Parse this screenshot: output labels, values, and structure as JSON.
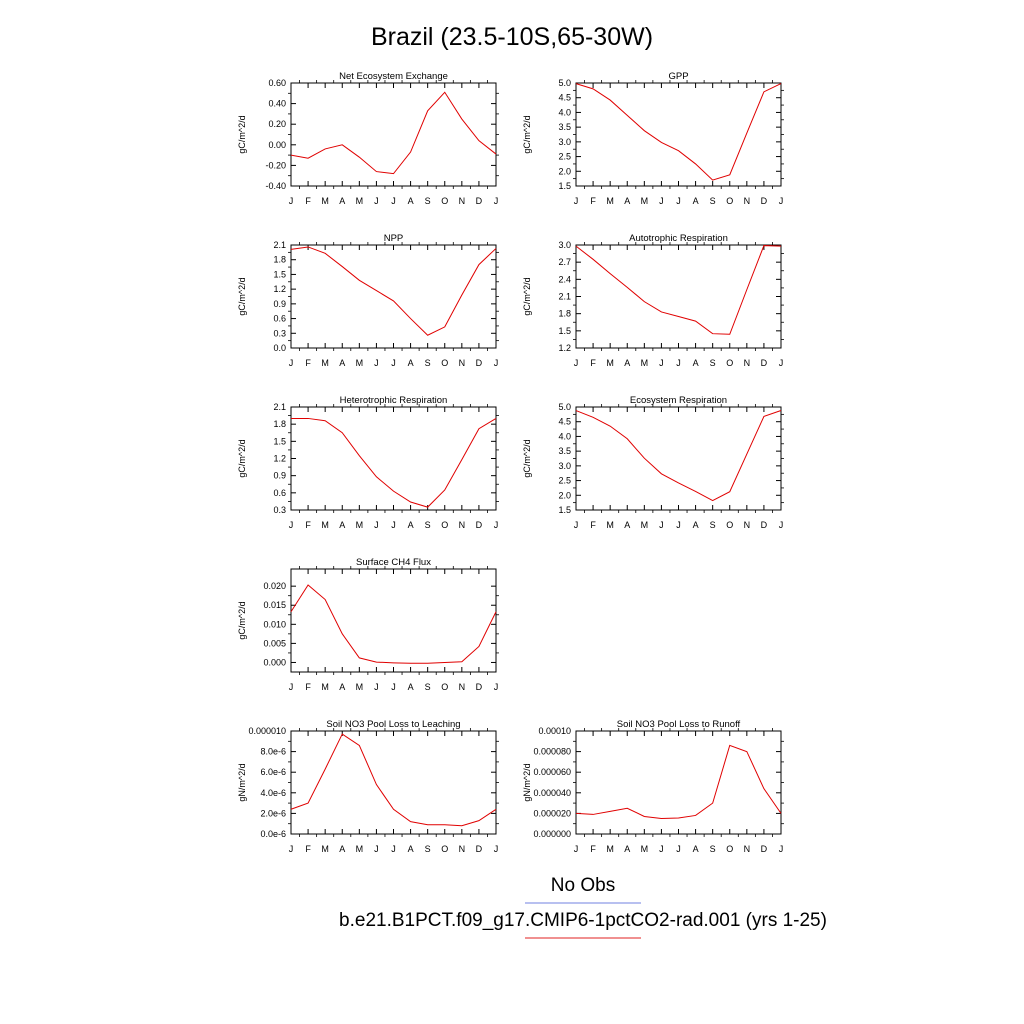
{
  "page_title": "Brazil (23.5-10S,65-30W)",
  "legend": {
    "obs_label": "No Obs",
    "obs_color": "#7080e0",
    "model_label": "b.e21.B1PCT.f09_g17.CMIP6-1pctCO2-rad.001 (yrs 1-25)",
    "model_color": "#e02020"
  },
  "line_color": "#e00000",
  "chart_data": [
    {
      "type": "line",
      "title": "Net Ecosystem Exchange",
      "ylabel": "gC/m^2/d",
      "categories": [
        "J",
        "F",
        "M",
        "A",
        "M",
        "J",
        "J",
        "A",
        "S",
        "O",
        "N",
        "D",
        "J"
      ],
      "ylim": [
        -0.4,
        0.6
      ],
      "ytick_labels": [
        "-0.40",
        "-0.20",
        "0.00",
        "0.20",
        "0.40",
        "0.60"
      ],
      "values": [
        -0.1,
        -0.13,
        -0.04,
        0.0,
        -0.12,
        -0.26,
        -0.28,
        -0.07,
        0.33,
        0.51,
        0.25,
        0.04,
        -0.09
      ]
    },
    {
      "type": "line",
      "title": "GPP",
      "ylabel": "gC/m^2/d",
      "categories": [
        "J",
        "F",
        "M",
        "A",
        "M",
        "J",
        "J",
        "A",
        "S",
        "O",
        "N",
        "D",
        "J"
      ],
      "ylim": [
        1.5,
        5.0
      ],
      "ytick_labels": [
        "1.5",
        "2.0",
        "2.5",
        "3.0",
        "3.5",
        "4.0",
        "4.5",
        "5.0"
      ],
      "values": [
        4.98,
        4.8,
        4.42,
        3.9,
        3.38,
        2.98,
        2.7,
        2.25,
        1.7,
        1.88,
        3.3,
        4.7,
        4.98
      ]
    },
    {
      "type": "line",
      "title": "NPP",
      "ylabel": "gC/m^2/d",
      "categories": [
        "J",
        "F",
        "M",
        "A",
        "M",
        "J",
        "J",
        "A",
        "S",
        "O",
        "N",
        "D",
        "J"
      ],
      "ylim": [
        0.0,
        2.1
      ],
      "ytick_labels": [
        "0.0",
        "0.3",
        "0.6",
        "0.9",
        "1.2",
        "1.5",
        "1.8",
        "2.1"
      ],
      "values": [
        2.01,
        2.06,
        1.93,
        1.66,
        1.38,
        1.17,
        0.96,
        0.6,
        0.26,
        0.43,
        1.08,
        1.7,
        2.03
      ]
    },
    {
      "type": "line",
      "title": "Autotrophic Respiration",
      "ylabel": "gC/m^2/d",
      "categories": [
        "J",
        "F",
        "M",
        "A",
        "M",
        "J",
        "J",
        "A",
        "S",
        "O",
        "N",
        "D",
        "J"
      ],
      "ylim": [
        1.2,
        3.0
      ],
      "ytick_labels": [
        "1.2",
        "1.5",
        "1.8",
        "2.1",
        "2.4",
        "2.7",
        "3.0"
      ],
      "values": [
        2.98,
        2.75,
        2.5,
        2.26,
        2.01,
        1.83,
        1.75,
        1.67,
        1.45,
        1.44,
        2.22,
        2.99,
        2.98
      ]
    },
    {
      "type": "line",
      "title": "Heterotrophic Respiration",
      "ylabel": "gC/m^2/d",
      "categories": [
        "J",
        "F",
        "M",
        "A",
        "M",
        "J",
        "J",
        "A",
        "S",
        "O",
        "N",
        "D",
        "J"
      ],
      "ylim": [
        0.3,
        2.1
      ],
      "ytick_labels": [
        "0.3",
        "0.6",
        "0.9",
        "1.2",
        "1.5",
        "1.8",
        "2.1"
      ],
      "values": [
        1.9,
        1.9,
        1.86,
        1.65,
        1.25,
        0.88,
        0.63,
        0.44,
        0.35,
        0.65,
        1.18,
        1.72,
        1.9
      ]
    },
    {
      "type": "line",
      "title": "Ecosystem Respiration",
      "ylabel": "gC/m^2/d",
      "categories": [
        "J",
        "F",
        "M",
        "A",
        "M",
        "J",
        "J",
        "A",
        "S",
        "O",
        "N",
        "D",
        "J"
      ],
      "ylim": [
        1.5,
        5.0
      ],
      "ytick_labels": [
        "1.5",
        "2.0",
        "2.5",
        "3.0",
        "3.5",
        "4.0",
        "4.5",
        "5.0"
      ],
      "values": [
        4.88,
        4.65,
        4.35,
        3.92,
        3.26,
        2.73,
        2.42,
        2.13,
        1.82,
        2.12,
        3.4,
        4.68,
        4.88
      ]
    },
    {
      "type": "line",
      "title": "Surface CH4 Flux",
      "ylabel": "gC/m^2/d",
      "categories": [
        "J",
        "F",
        "M",
        "A",
        "M",
        "J",
        "J",
        "A",
        "S",
        "O",
        "N",
        "D",
        "J"
      ],
      "ylim": [
        -0.0025,
        0.0245
      ],
      "ytick_labels": [
        "0.000",
        "0.005",
        "0.010",
        "0.015",
        "0.020"
      ],
      "ytick_values": [
        0.0,
        0.005,
        0.01,
        0.015,
        0.02
      ],
      "values": [
        0.0133,
        0.0203,
        0.0165,
        0.0075,
        0.0012,
        0.0001,
        -0.0001,
        -0.0002,
        -0.0002,
        0.0,
        0.0002,
        0.0042,
        0.0133
      ]
    },
    {
      "type": "line",
      "title": "Soil NO3 Pool Loss to Leaching",
      "ylabel": "gN/m^2/d",
      "categories": [
        "J",
        "F",
        "M",
        "A",
        "M",
        "J",
        "J",
        "A",
        "S",
        "O",
        "N",
        "D",
        "J"
      ],
      "ylim": [
        0.0,
        1e-05
      ],
      "ytick_labels": [
        "0.0e-6",
        "2.0e-6",
        "4.0e-6",
        "6.0e-6",
        "8.0e-6",
        "0.000010"
      ],
      "values": [
        2.4e-06,
        3e-06,
        6.3e-06,
        9.7e-06,
        8.6e-06,
        4.8e-06,
        2.4e-06,
        1.2e-06,
        9e-07,
        9e-07,
        8e-07,
        1.3e-06,
        2.4e-06
      ]
    },
    {
      "type": "line",
      "title": "Soil NO3 Pool Loss to Runoff",
      "ylabel": "gN/m^2/d",
      "categories": [
        "J",
        "F",
        "M",
        "A",
        "M",
        "J",
        "J",
        "A",
        "S",
        "O",
        "N",
        "D",
        "J"
      ],
      "ylim": [
        0.0,
        0.0001
      ],
      "ytick_labels": [
        "0.000000",
        "0.000020",
        "0.000040",
        "0.000060",
        "0.000080",
        "0.00010"
      ],
      "values": [
        2e-05,
        1.9e-05,
        2.2e-05,
        2.5e-05,
        1.7e-05,
        1.5e-05,
        1.55e-05,
        1.8e-05,
        3e-05,
        8.6e-05,
        8e-05,
        4.4e-05,
        2e-05
      ]
    }
  ]
}
